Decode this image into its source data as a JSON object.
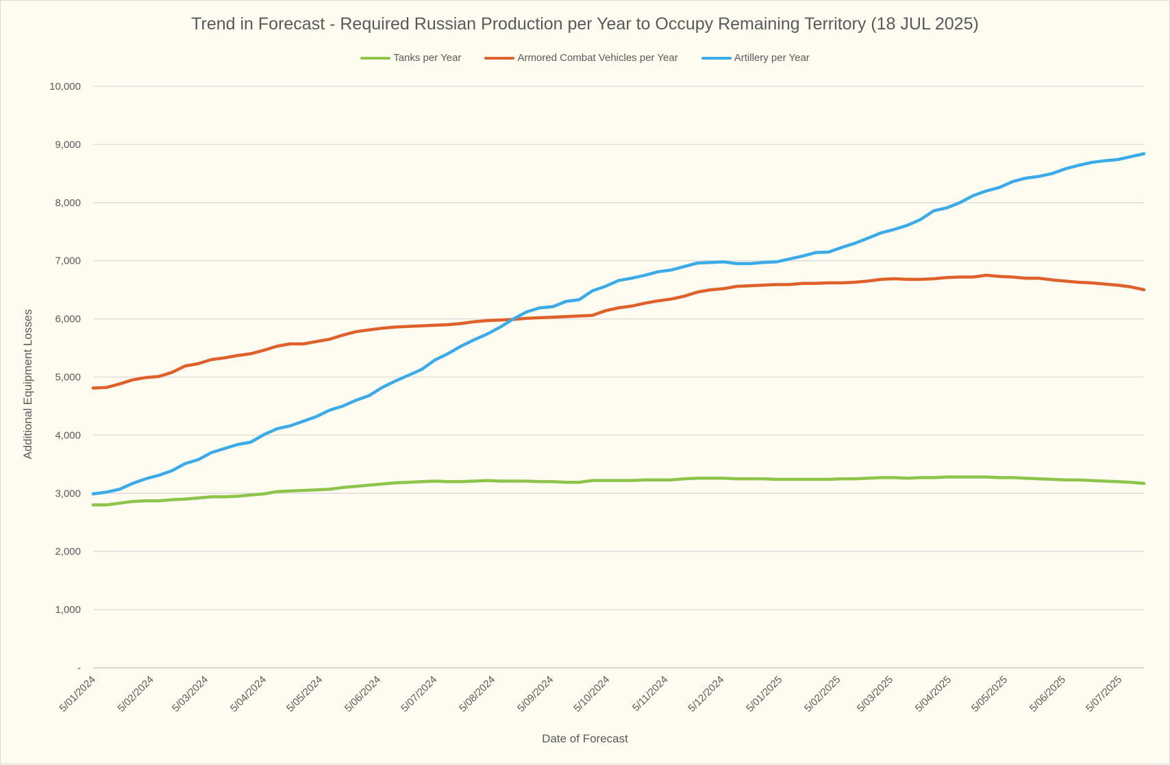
{
  "chart_data": {
    "type": "line",
    "title": "Trend in Forecast - Required Russian Production per Year to Occupy Remaining Territory (18 JUL 2025)",
    "xlabel": "Date of Forecast",
    "ylabel": "Additional Equipment Losses",
    "ylim": [
      0,
      10000
    ],
    "y_ticks": [
      "-",
      "1,000",
      "2,000",
      "3,000",
      "4,000",
      "5,000",
      "6,000",
      "7,000",
      "8,000",
      "9,000",
      "10,000"
    ],
    "x_start": "2024-01-05",
    "x_step_days": 7,
    "x_tick_labels": [
      "5/01/2024",
      "5/02/2024",
      "5/03/2024",
      "5/04/2024",
      "5/05/2024",
      "5/06/2024",
      "5/07/2024",
      "5/08/2024",
      "5/09/2024",
      "5/10/2024",
      "5/11/2024",
      "5/12/2024",
      "5/01/2025",
      "5/02/2025",
      "5/03/2025",
      "5/04/2025",
      "5/05/2025",
      "5/06/2025",
      "5/07/2025"
    ],
    "x_tick_days": [
      0,
      31,
      60,
      91,
      121,
      152,
      182,
      213,
      244,
      274,
      305,
      335,
      366,
      397,
      425,
      456,
      486,
      517,
      547
    ],
    "x_range_days": [
      0,
      560
    ],
    "grid": true,
    "legend_position": "top",
    "series": [
      {
        "name": "Tanks per Year",
        "color": "#8dc54b",
        "values": [
          2800,
          2800,
          2830,
          2860,
          2870,
          2870,
          2890,
          2900,
          2920,
          2940,
          2940,
          2950,
          2970,
          2990,
          3030,
          3040,
          3050,
          3060,
          3070,
          3100,
          3120,
          3140,
          3160,
          3180,
          3190,
          3200,
          3210,
          3200,
          3200,
          3210,
          3220,
          3210,
          3210,
          3210,
          3200,
          3200,
          3190,
          3190,
          3220,
          3220,
          3220,
          3220,
          3230,
          3230,
          3230,
          3250,
          3260,
          3260,
          3260,
          3250,
          3250,
          3250,
          3240,
          3240,
          3240,
          3240,
          3240,
          3250,
          3250,
          3260,
          3270,
          3270,
          3260,
          3270,
          3270,
          3280,
          3280,
          3280,
          3280,
          3270,
          3270,
          3260,
          3250,
          3240,
          3230,
          3230,
          3220,
          3210,
          3200,
          3190,
          3170
        ]
      },
      {
        "name": "Armored Combat Vehicles per Year",
        "color": "#e0602a",
        "values": [
          4810,
          4820,
          4880,
          4950,
          4990,
          5010,
          5080,
          5190,
          5230,
          5300,
          5330,
          5370,
          5400,
          5460,
          5530,
          5570,
          5570,
          5610,
          5650,
          5720,
          5780,
          5810,
          5840,
          5860,
          5870,
          5880,
          5890,
          5900,
          5920,
          5950,
          5970,
          5980,
          5990,
          6010,
          6020,
          6030,
          6040,
          6050,
          6060,
          6140,
          6190,
          6220,
          6270,
          6310,
          6340,
          6390,
          6460,
          6500,
          6520,
          6560,
          6570,
          6580,
          6590,
          6590,
          6610,
          6610,
          6620,
          6620,
          6630,
          6650,
          6680,
          6690,
          6680,
          6680,
          6690,
          6710,
          6720,
          6720,
          6750,
          6730,
          6720,
          6700,
          6700,
          6670,
          6650,
          6630,
          6620,
          6600,
          6580,
          6550,
          6500
        ]
      },
      {
        "name": "Artillery per Year",
        "color": "#3aabe8",
        "values": [
          2990,
          3020,
          3070,
          3170,
          3250,
          3310,
          3390,
          3510,
          3580,
          3700,
          3770,
          3840,
          3880,
          4010,
          4110,
          4160,
          4240,
          4320,
          4430,
          4500,
          4600,
          4680,
          4820,
          4930,
          5030,
          5130,
          5290,
          5400,
          5530,
          5640,
          5740,
          5860,
          6000,
          6120,
          6190,
          6210,
          6300,
          6330,
          6480,
          6560,
          6660,
          6700,
          6750,
          6810,
          6840,
          6900,
          6960,
          6970,
          6980,
          6950,
          6950,
          6970,
          6980,
          7030,
          7080,
          7140,
          7150,
          7230,
          7300,
          7390,
          7480,
          7540,
          7610,
          7710,
          7860,
          7910,
          8000,
          8120,
          8200,
          8260,
          8360,
          8420,
          8450,
          8500,
          8580,
          8640,
          8690,
          8720,
          8740,
          8790,
          8840
        ]
      }
    ]
  }
}
